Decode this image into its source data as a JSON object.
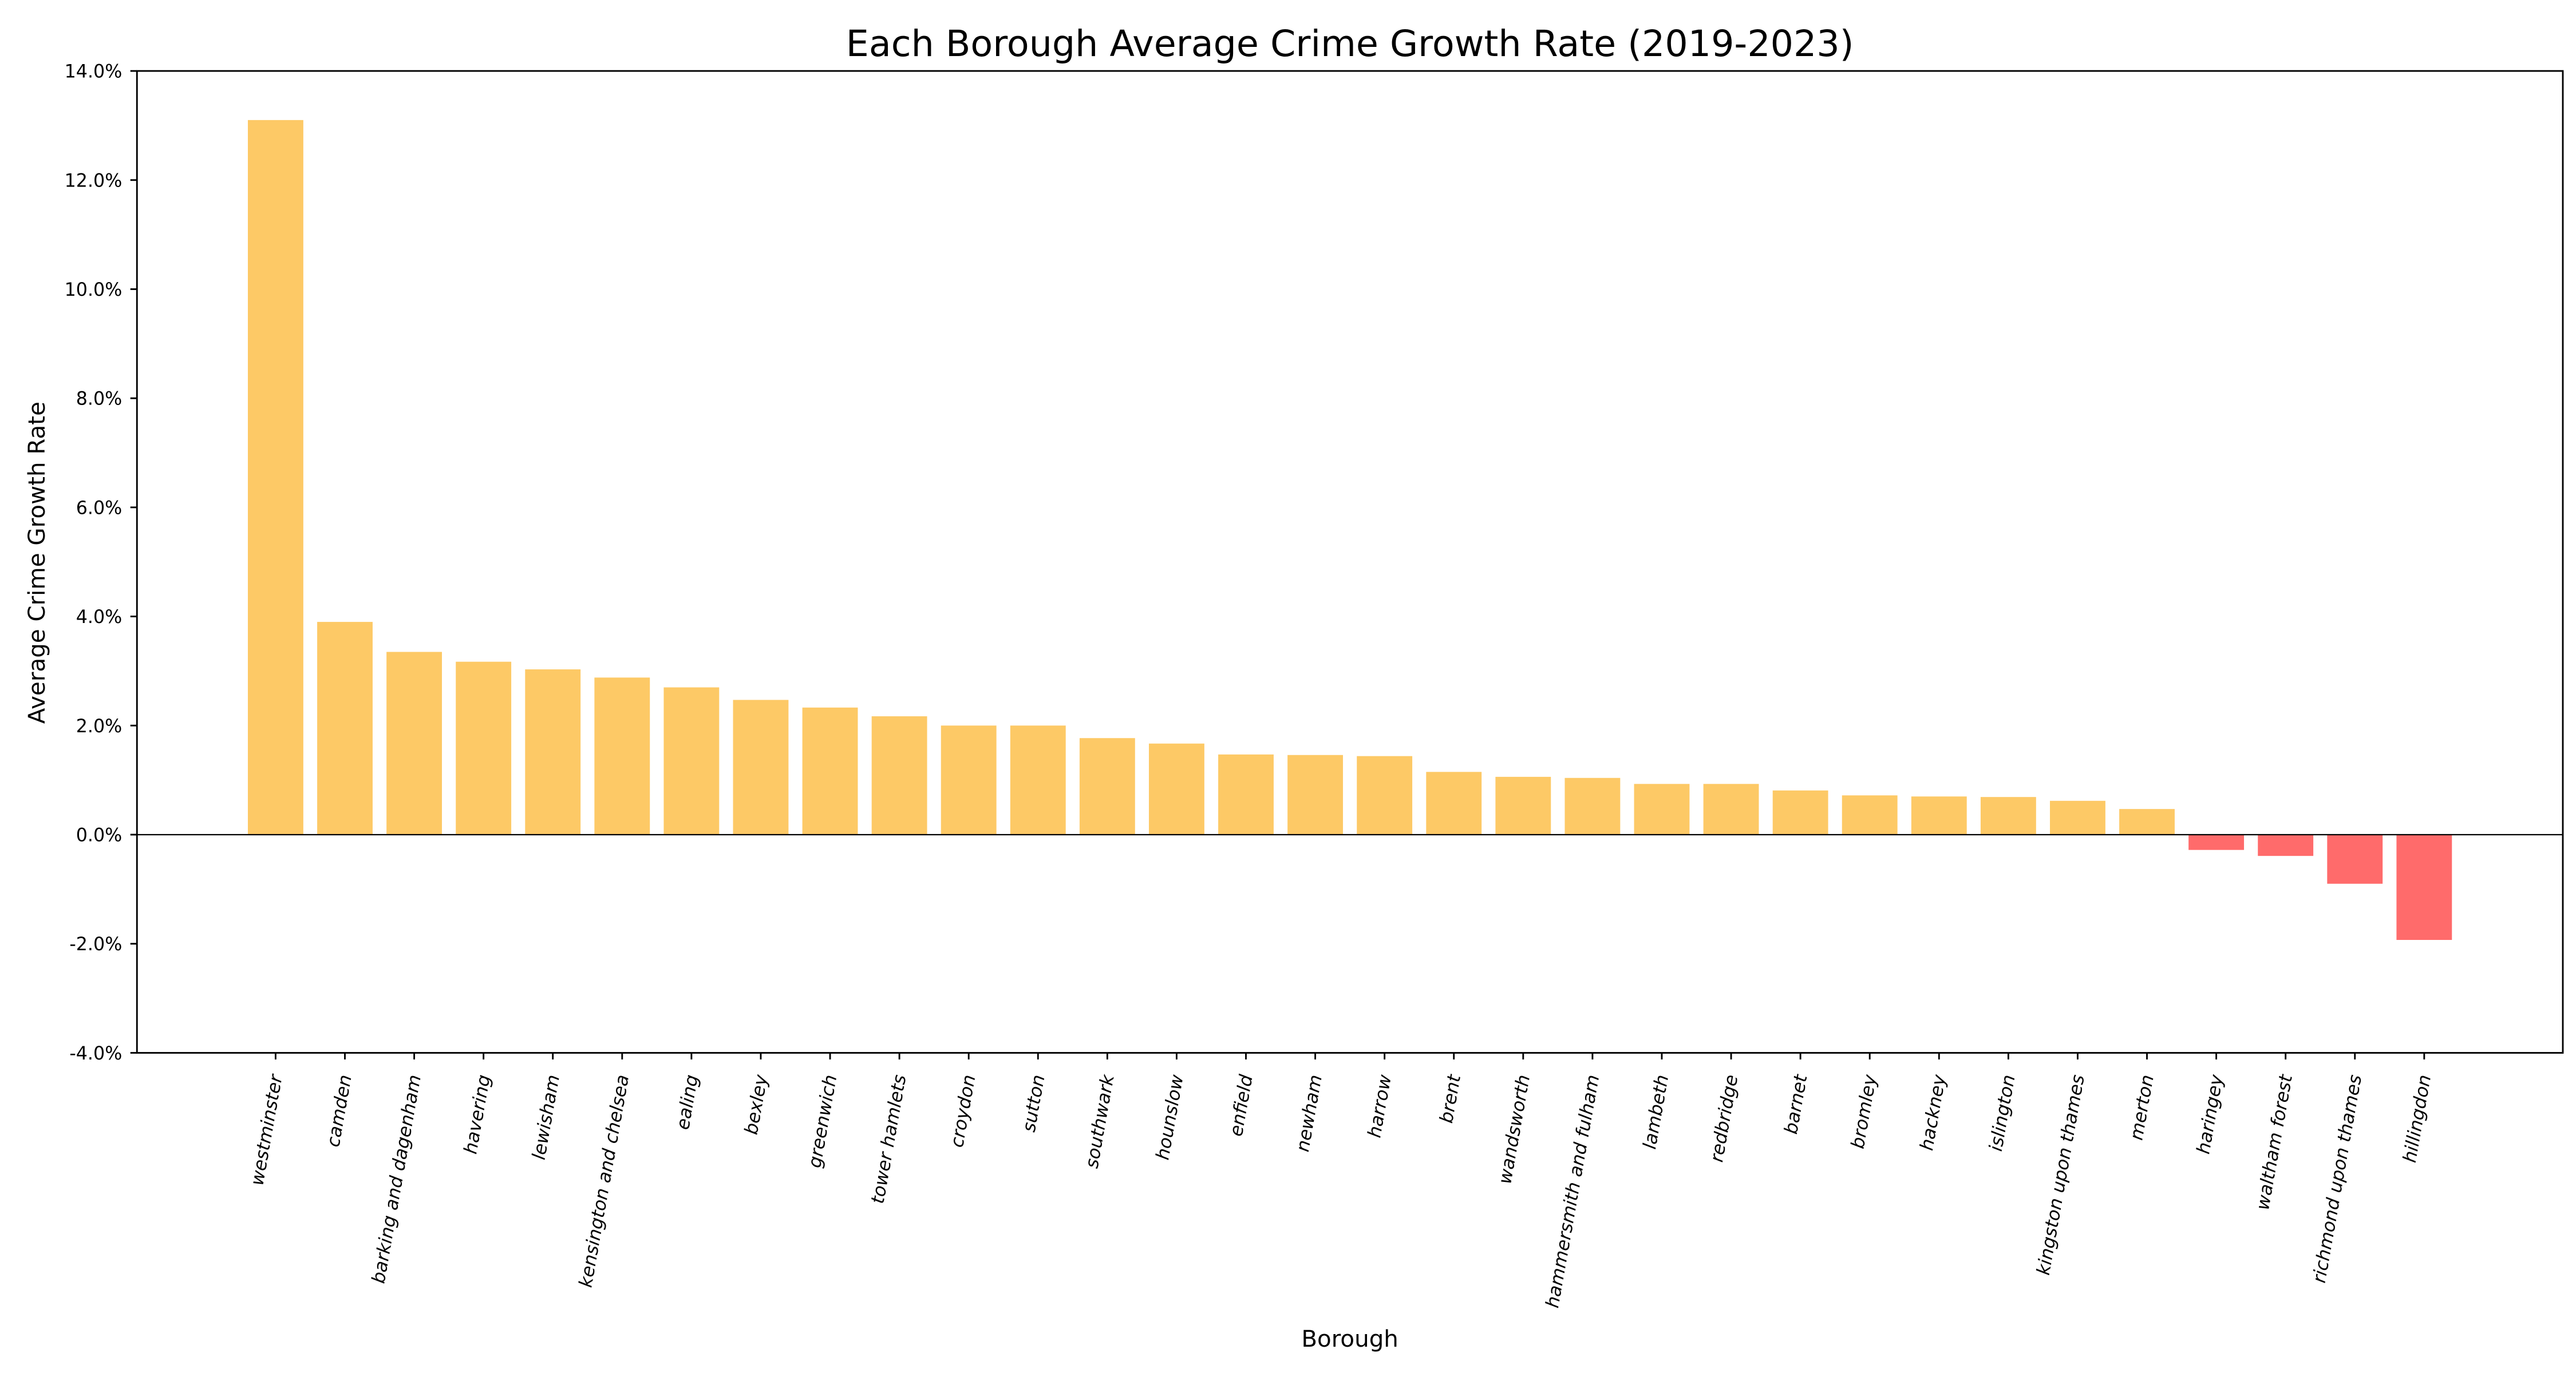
{
  "chart_data": {
    "type": "bar",
    "title": "Each Borough Average Crime Growth Rate (2019-2023)",
    "xlabel": "Borough",
    "ylabel": "Average Crime Growth Rate",
    "ylim": [
      -4.0,
      14.0
    ],
    "y_ticks": [
      -4.0,
      -2.0,
      0.0,
      2.0,
      4.0,
      6.0,
      8.0,
      10.0,
      12.0,
      14.0
    ],
    "y_tick_format": "percent_one_decimal",
    "grid": false,
    "legend": "none",
    "tick_label_rotation": "rotated ~80 degrees",
    "categories": [
      "westminster",
      "camden",
      "barking and dagenham",
      "havering",
      "lewisham",
      "kensington and chelsea",
      "ealing",
      "bexley",
      "greenwich",
      "tower hamlets",
      "croydon",
      "sutton",
      "southwark",
      "hounslow",
      "enfield",
      "newham",
      "harrow",
      "brent",
      "wandsworth",
      "hammersmith and fulham",
      "lambeth",
      "redbridge",
      "barnet",
      "bromley",
      "hackney",
      "islington",
      "kingston upon thames",
      "merton",
      "haringey",
      "waltham forest",
      "richmond upon thames",
      "hillingdon"
    ],
    "values": [
      13.1,
      3.9,
      3.35,
      3.17,
      3.03,
      2.88,
      2.7,
      2.47,
      2.33,
      2.17,
      2.0,
      2.0,
      1.77,
      1.67,
      1.47,
      1.46,
      1.44,
      1.15,
      1.06,
      1.04,
      0.93,
      0.93,
      0.81,
      0.72,
      0.7,
      0.69,
      0.62,
      0.47,
      -0.28,
      -0.39,
      -0.9,
      -1.93
    ],
    "colors": {
      "positive": "#FDC966",
      "negative": "#FF6B6B",
      "axes": "#000000",
      "zero_line": "#000000"
    }
  }
}
